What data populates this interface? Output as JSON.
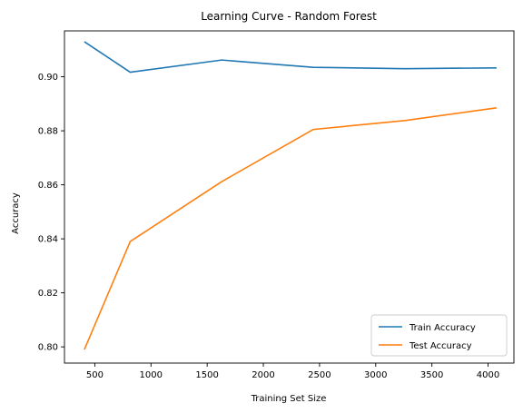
{
  "chart_data": {
    "type": "line",
    "title": "Learning Curve - Random Forest",
    "xlabel": "Training Set Size",
    "ylabel": "Accuracy",
    "xlim": [
      230,
      4230
    ],
    "ylim": [
      0.794,
      0.917
    ],
    "xticks": [
      500,
      1000,
      1500,
      2000,
      2500,
      3000,
      3500,
      4000
    ],
    "yticks": [
      0.8,
      0.82,
      0.84,
      0.86,
      0.88,
      0.9
    ],
    "x": [
      407,
      815,
      1630,
      2445,
      3260,
      4075
    ],
    "series": [
      {
        "name": "Train Accuracy",
        "color": "#1f77b4",
        "values": [
          0.913,
          0.9017,
          0.9062,
          0.9035,
          0.903,
          0.9033
        ]
      },
      {
        "name": "Test Accuracy",
        "color": "#ff7f0e",
        "values": [
          0.799,
          0.839,
          0.8612,
          0.8805,
          0.8838,
          0.8885
        ]
      }
    ],
    "grid": false,
    "legend": "lower-right"
  }
}
